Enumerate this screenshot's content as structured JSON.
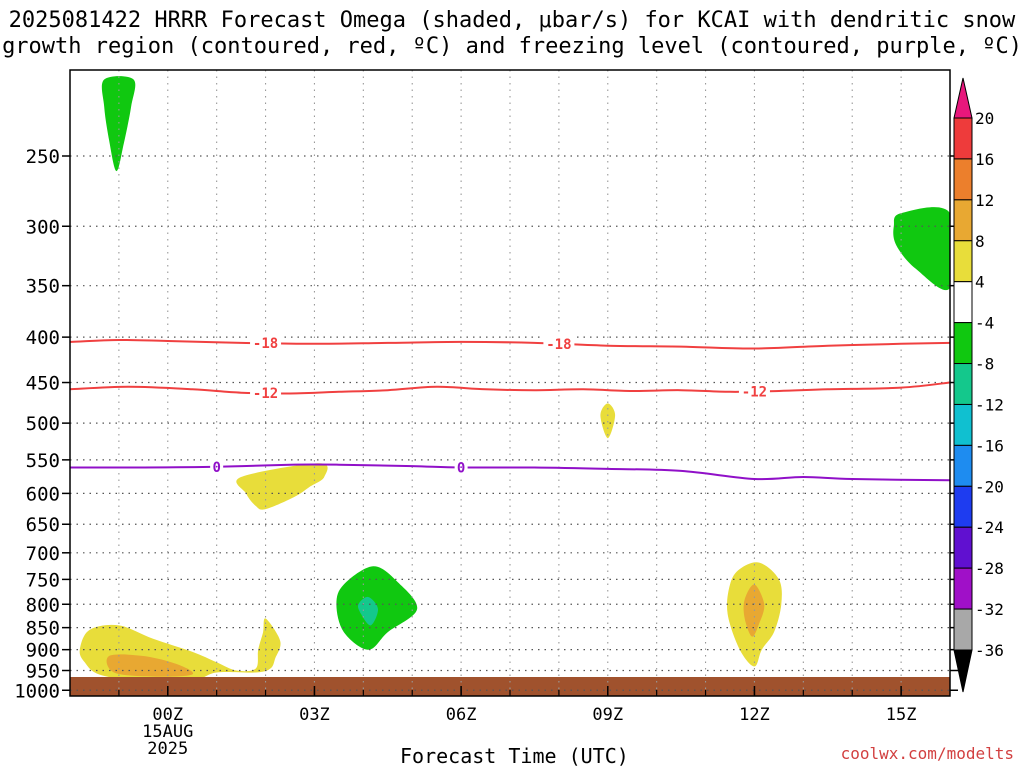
{
  "title": "2025081422 HRRR Forecast Omega (shaded, μbar/s) for KCAI with dendritic snow\ngrowth region (contoured, red, ºC) and freezing level (contoured, purple, ºC)",
  "credit": "coolwx.com/modelts",
  "chart_data": {
    "type": "contour",
    "title": "2025081422 HRRR Forecast Omega (shaded, μbar/s) for KCAI with dendritic snow growth region (contoured, red, ºC) and freezing level (contoured, purple, ºC)",
    "xlabel": "Forecast Time (UTC)",
    "ylabel": "",
    "x_ticks": [
      {
        "value": 0,
        "label": "00Z",
        "sub": [
          "15AUG",
          "2025"
        ]
      },
      {
        "value": 3,
        "label": "03Z"
      },
      {
        "value": 6,
        "label": "06Z"
      },
      {
        "value": 9,
        "label": "09Z"
      },
      {
        "value": 12,
        "label": "12Z"
      },
      {
        "value": 15,
        "label": "15Z"
      }
    ],
    "xlim": [
      -2,
      16
    ],
    "y_ticks": [
      250,
      300,
      350,
      400,
      450,
      500,
      550,
      600,
      650,
      700,
      750,
      800,
      850,
      900,
      950,
      1000
    ],
    "ylim": [
      1015,
      200
    ],
    "y_scale": "log",
    "grid": true,
    "colorbar": {
      "labels": [
        "20",
        "16",
        "12",
        "8",
        "4",
        "-4",
        "-8",
        "-12",
        "-16",
        "-20",
        "-24",
        "-28",
        "-32",
        "-36"
      ],
      "colors": [
        "#e8177c",
        "#ee3b3b",
        "#ec7f2c",
        "#e8a832",
        "#e8dd3a",
        "#ffffff",
        "#10c810",
        "#14c88c",
        "#10c0d0",
        "#1e8cf0",
        "#1e3cf0",
        "#6010d0",
        "#a010c8",
        "#a8a8a8",
        "#000000"
      ]
    },
    "contours": [
      {
        "name": "-18",
        "color": "#f04040",
        "points": [
          [
            -2,
            405
          ],
          [
            -1,
            403
          ],
          [
            0,
            404
          ],
          [
            1.5,
            406
          ],
          [
            3,
            407
          ],
          [
            4.5,
            406
          ],
          [
            6,
            405
          ],
          [
            7.5,
            406
          ],
          [
            9,
            409
          ],
          [
            10.5,
            410
          ],
          [
            12,
            412
          ],
          [
            13.5,
            409
          ],
          [
            15,
            407
          ],
          [
            16,
            406
          ]
        ],
        "labels": [
          2,
          8
        ]
      },
      {
        "name": "-12",
        "color": "#f04040",
        "points": [
          [
            -2,
            458
          ],
          [
            -0.8,
            455
          ],
          [
            0.5,
            458
          ],
          [
            1.5,
            462
          ],
          [
            2.5,
            463
          ],
          [
            3.5,
            461
          ],
          [
            4.5,
            459
          ],
          [
            5.5,
            455
          ],
          [
            6.5,
            458
          ],
          [
            7.5,
            459
          ],
          [
            8.5,
            458
          ],
          [
            9.5,
            460
          ],
          [
            10.5,
            459
          ],
          [
            11.5,
            461
          ],
          [
            12.5,
            460
          ],
          [
            13.5,
            458
          ],
          [
            15,
            456
          ],
          [
            16,
            450
          ]
        ],
        "labels": [
          2,
          12
        ]
      },
      {
        "name": "0",
        "color": "#9010c8",
        "points": [
          [
            -2,
            561
          ],
          [
            -0.5,
            561
          ],
          [
            1,
            560
          ],
          [
            2.5,
            557
          ],
          [
            3.5,
            557
          ],
          [
            5,
            559
          ],
          [
            6,
            561
          ],
          [
            7.5,
            561
          ],
          [
            9,
            563
          ],
          [
            10.5,
            566
          ],
          [
            12,
            578
          ],
          [
            13,
            575
          ],
          [
            14,
            578
          ],
          [
            16,
            580
          ]
        ],
        "labels": [
          1,
          6
        ]
      }
    ],
    "shaded_regions": [
      {
        "value": -6,
        "points": [
          [
            -1.3,
            205
          ],
          [
            -0.7,
            205
          ],
          [
            -0.75,
            220
          ],
          [
            -0.9,
            242
          ],
          [
            -1.05,
            260
          ],
          [
            -1.2,
            240
          ],
          [
            -1.3,
            220
          ]
        ]
      },
      {
        "value": -6,
        "points": [
          [
            15,
            290
          ],
          [
            16,
            290
          ],
          [
            16,
            352
          ],
          [
            15.3,
            335
          ],
          [
            14.9,
            315
          ],
          [
            14.85,
            300
          ]
        ]
      },
      {
        "value": 6,
        "points": [
          [
            9,
            475
          ],
          [
            9.15,
            490
          ],
          [
            9,
            520
          ],
          [
            8.85,
            490
          ]
        ]
      },
      {
        "value": 6,
        "points": [
          [
            1.5,
            575
          ],
          [
            3.1,
            555
          ],
          [
            3.2,
            575
          ],
          [
            2.9,
            590
          ],
          [
            2.6,
            605
          ],
          [
            2.0,
            625
          ],
          [
            1.8,
            620
          ],
          [
            1.6,
            600
          ]
        ]
      },
      {
        "value": -6,
        "points": [
          [
            4.2,
            725
          ],
          [
            4.7,
            755
          ],
          [
            5.1,
            810
          ],
          [
            4.5,
            860
          ],
          [
            4.1,
            900
          ],
          [
            3.6,
            860
          ],
          [
            3.45,
            800
          ],
          [
            3.6,
            760
          ]
        ]
      },
      {
        "value": -10,
        "points": [
          [
            4.1,
            785
          ],
          [
            4.3,
            810
          ],
          [
            4.15,
            845
          ],
          [
            3.95,
            820
          ],
          [
            3.9,
            800
          ]
        ]
      },
      {
        "value": 6,
        "points": [
          [
            12.1,
            718
          ],
          [
            12.5,
            750
          ],
          [
            12.55,
            800
          ],
          [
            12.4,
            860
          ],
          [
            12.15,
            900
          ],
          [
            12.0,
            940
          ],
          [
            11.7,
            900
          ],
          [
            11.45,
            820
          ],
          [
            11.5,
            760
          ],
          [
            11.7,
            730
          ]
        ]
      },
      {
        "value": 10,
        "points": [
          [
            12.0,
            760
          ],
          [
            12.2,
            800
          ],
          [
            12.1,
            840
          ],
          [
            11.95,
            870
          ],
          [
            11.8,
            830
          ],
          [
            11.8,
            790
          ]
        ]
      },
      {
        "value": 6,
        "points": [
          [
            -1.6,
            855
          ],
          [
            -1.0,
            845
          ],
          [
            -0.3,
            875
          ],
          [
            0.5,
            905
          ],
          [
            1.0,
            930
          ],
          [
            1.4,
            950
          ],
          [
            1.8,
            945
          ],
          [
            1.85,
            900
          ],
          [
            1.95,
            860
          ],
          [
            2.0,
            830
          ],
          [
            2.3,
            880
          ],
          [
            2.2,
            920
          ],
          [
            2.1,
            945
          ],
          [
            1.8,
            955
          ],
          [
            1.0,
            955
          ],
          [
            0.5,
            975
          ],
          [
            -0.6,
            975
          ],
          [
            -1.4,
            960
          ],
          [
            -1.7,
            930
          ],
          [
            -1.8,
            900
          ]
        ]
      },
      {
        "value": 10,
        "points": [
          [
            -1.2,
            915
          ],
          [
            -0.5,
            915
          ],
          [
            0.2,
            935
          ],
          [
            0.5,
            960
          ],
          [
            -0.3,
            965
          ],
          [
            -1.1,
            955
          ]
        ]
      }
    ],
    "terrain": {
      "pressure": 1000,
      "color": "#a0522d"
    }
  }
}
